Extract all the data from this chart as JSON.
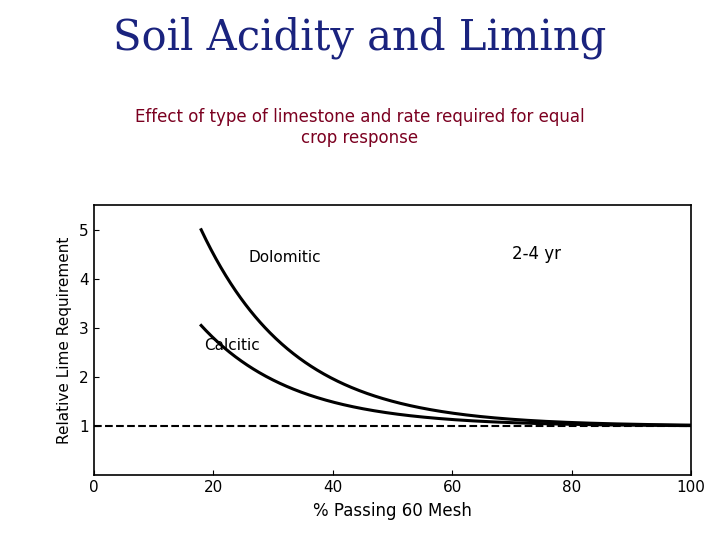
{
  "title": "Soil Acidity and Liming",
  "subtitle": "Effect of type of limestone and rate required for equal\ncrop response",
  "title_color": "#1a237e",
  "subtitle_color": "#7b0020",
  "xlabel": "% Passing 60 Mesh",
  "ylabel": "Relative Lime Requirement",
  "xlim": [
    0,
    100
  ],
  "ylim": [
    0,
    5.5
  ],
  "yticks": [
    1,
    2,
    3,
    4,
    5
  ],
  "xticks": [
    0,
    20,
    40,
    60,
    80,
    100
  ],
  "dolomitic_label": "Dolomitic",
  "calcitic_label": "Calcitic",
  "annotation": "2-4 yr",
  "dashed_line_y": 1.0,
  "background_color": "#ffffff",
  "title_fontsize": 30,
  "subtitle_fontsize": 12,
  "dolo_x_start": 18,
  "dolo_y_start": 5.0,
  "calc_x_start": 18,
  "calc_y_start": 3.05
}
